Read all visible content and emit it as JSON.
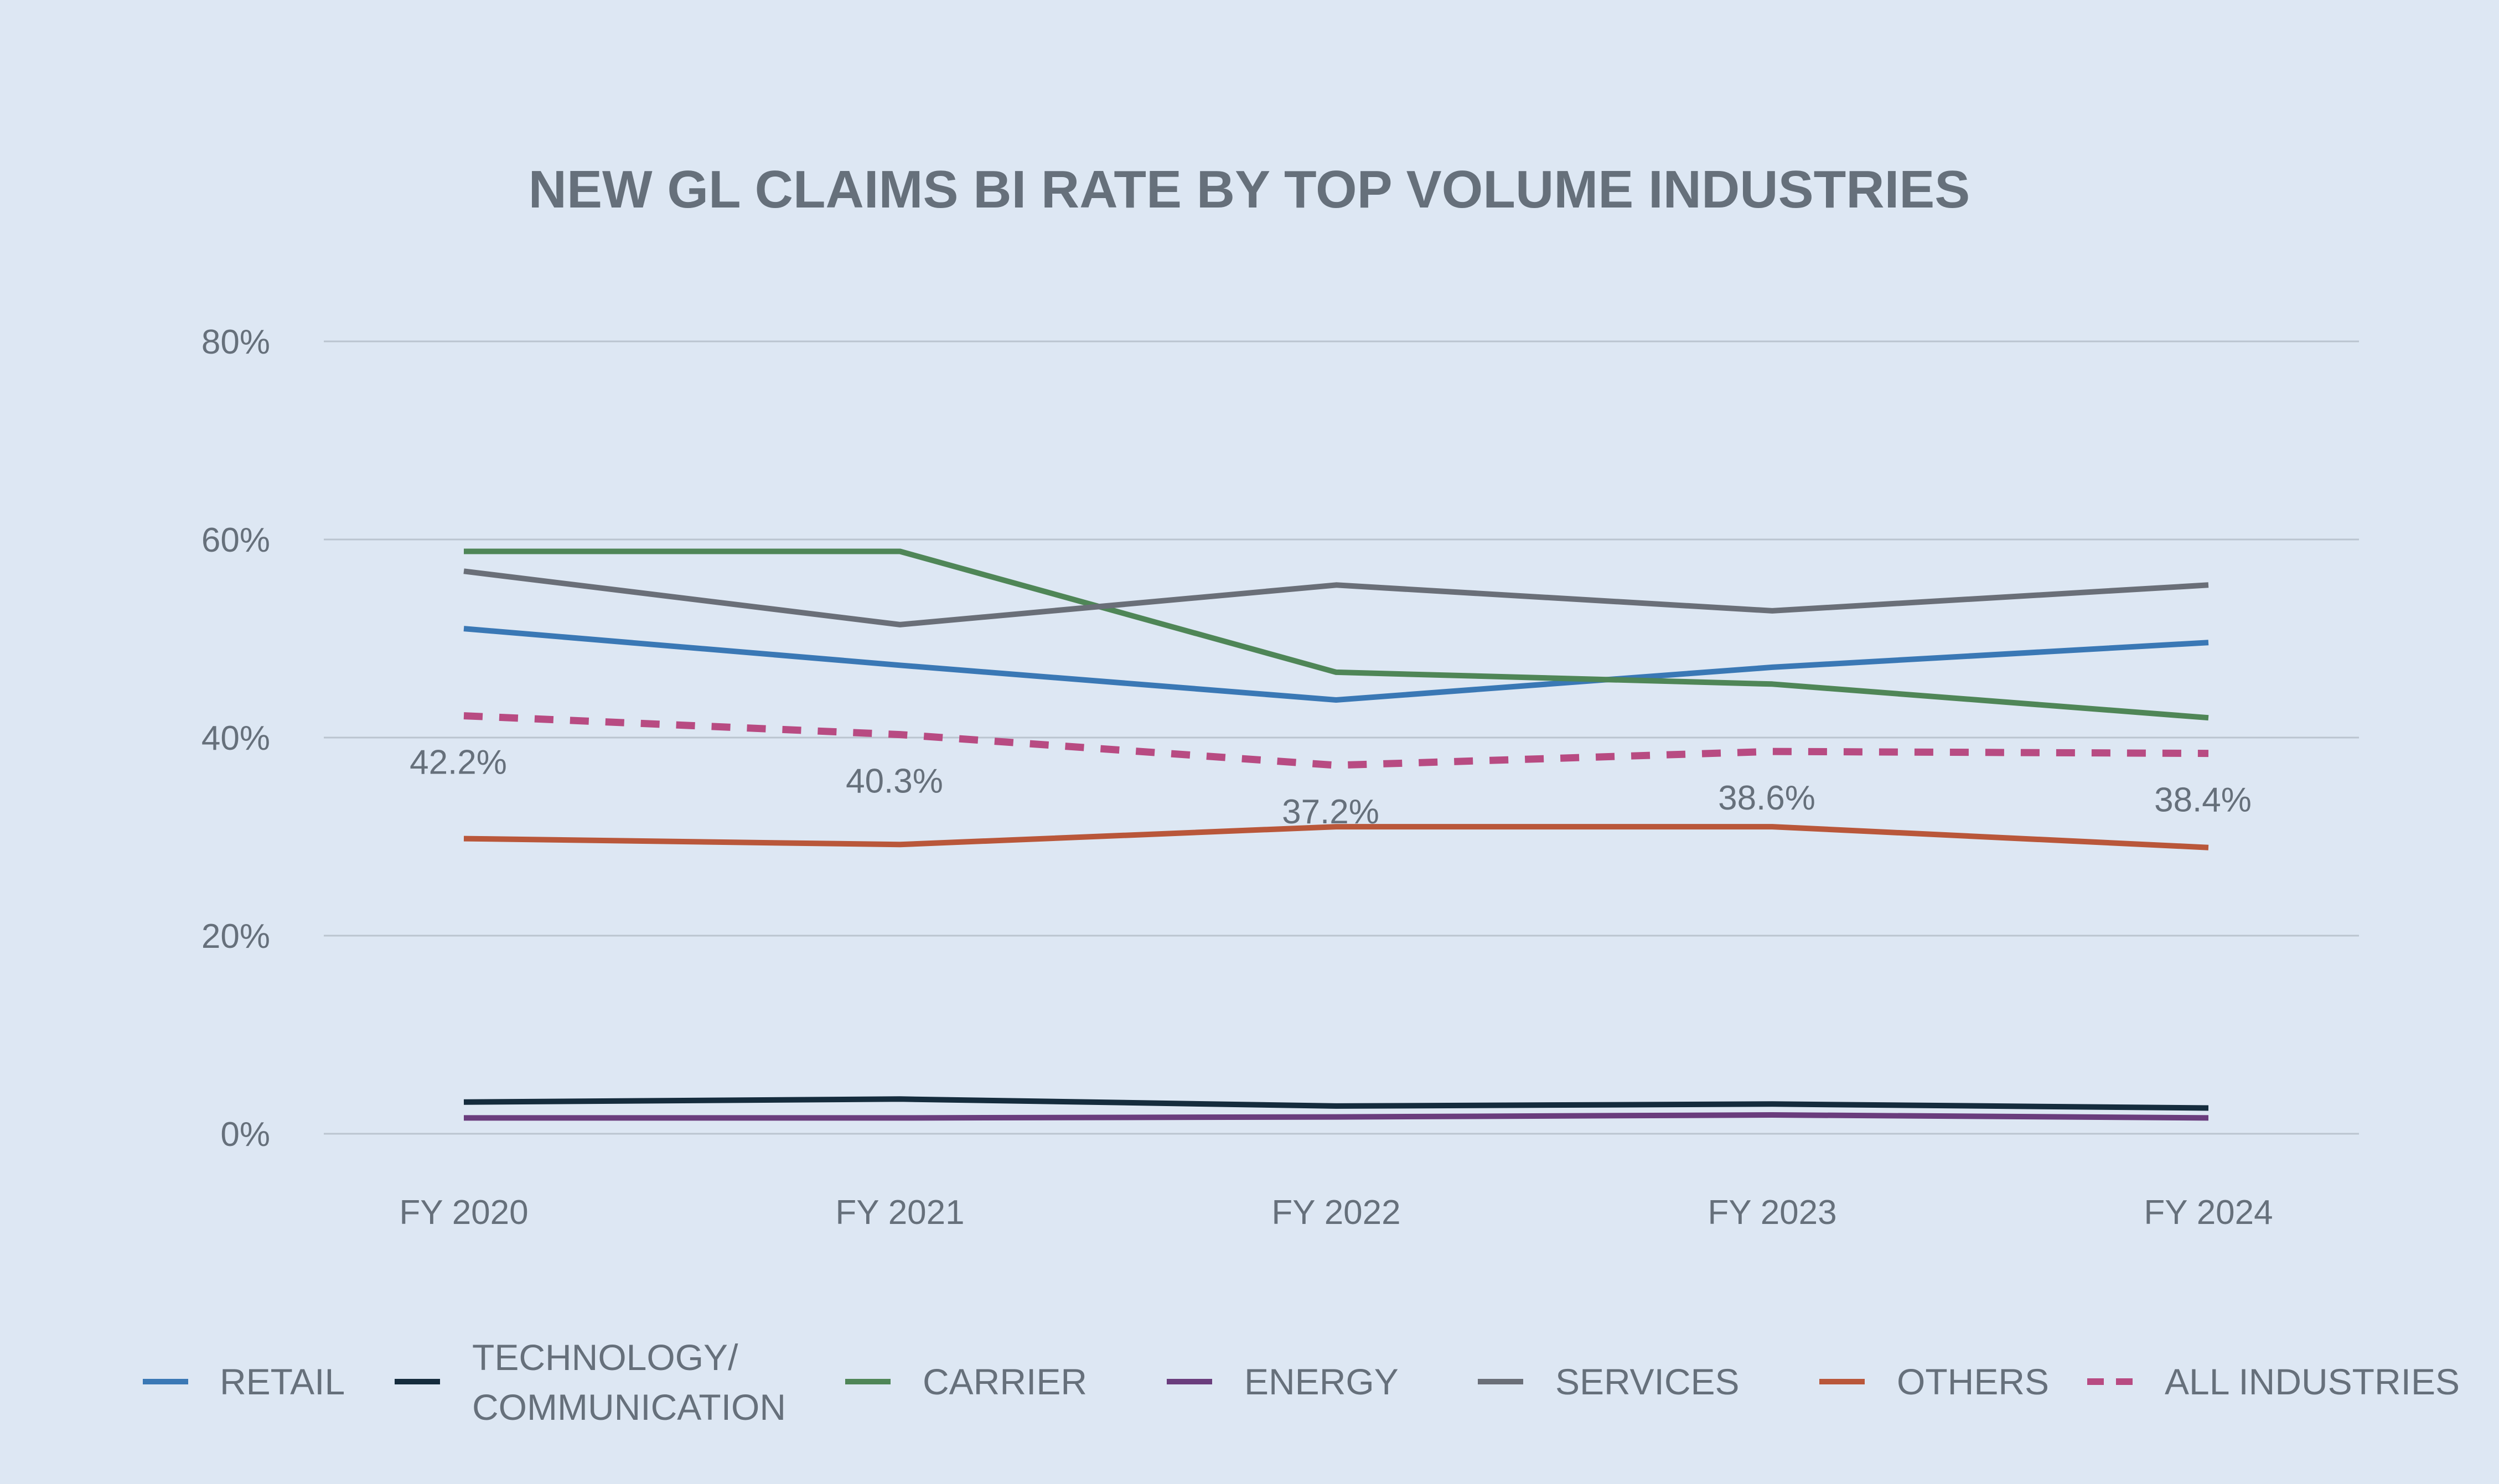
{
  "chart_data": {
    "type": "line",
    "title": "NEW GL CLAIMS BI RATE BY TOP VOLUME INDUSTRIES",
    "xlabel": "",
    "ylabel": "",
    "categories": [
      "FY 2020",
      "FY 2021",
      "FY 2022",
      "FY 2023",
      "FY 2024"
    ],
    "yticks": [
      "0%",
      "20%",
      "40%",
      "60%",
      "80%"
    ],
    "ylim": [
      0,
      80
    ],
    "grid": true,
    "legend_position": "bottom",
    "series": [
      {
        "name": "RETAIL",
        "name_lines": [
          "RETAIL"
        ],
        "color": "#3a78b5",
        "dashed": false,
        "values": [
          51.0,
          47.3,
          43.8,
          47.1,
          49.6
        ]
      },
      {
        "name": "TECHNOLOGY/ COMMUNICATION",
        "name_lines": [
          "TECHNOLOGY/",
          "COMMUNICATION"
        ],
        "color": "#152c3d",
        "dashed": false,
        "values": [
          3.2,
          3.5,
          2.8,
          3.0,
          2.6
        ]
      },
      {
        "name": "CARRIER",
        "name_lines": [
          "CARRIER"
        ],
        "color": "#4f8657",
        "dashed": false,
        "values": [
          58.8,
          58.8,
          46.6,
          45.4,
          42.0
        ]
      },
      {
        "name": "ENERGY",
        "name_lines": [
          "ENERGY"
        ],
        "color": "#6a3d7d",
        "dashed": false,
        "values": [
          1.6,
          1.6,
          1.7,
          1.9,
          1.6
        ]
      },
      {
        "name": "SERVICES",
        "name_lines": [
          "SERVICES"
        ],
        "color": "#6a6f78",
        "dashed": false,
        "values": [
          56.8,
          51.4,
          55.4,
          52.8,
          55.4
        ]
      },
      {
        "name": "OTHERS",
        "name_lines": [
          "OTHERS"
        ],
        "color": "#b9573a",
        "dashed": false,
        "values": [
          29.8,
          29.2,
          31.0,
          31.0,
          28.9
        ]
      },
      {
        "name": "ALL INDUSTRIES",
        "name_lines": [
          "ALL INDUSTRIES"
        ],
        "color": "#b84b82",
        "dashed": true,
        "values": [
          42.2,
          40.3,
          37.2,
          38.6,
          38.4
        ]
      }
    ],
    "data_labels": {
      "series": "ALL INDUSTRIES",
      "labels": [
        "42.2%",
        "40.3%",
        "37.2%",
        "38.6%",
        "38.4%"
      ]
    }
  }
}
